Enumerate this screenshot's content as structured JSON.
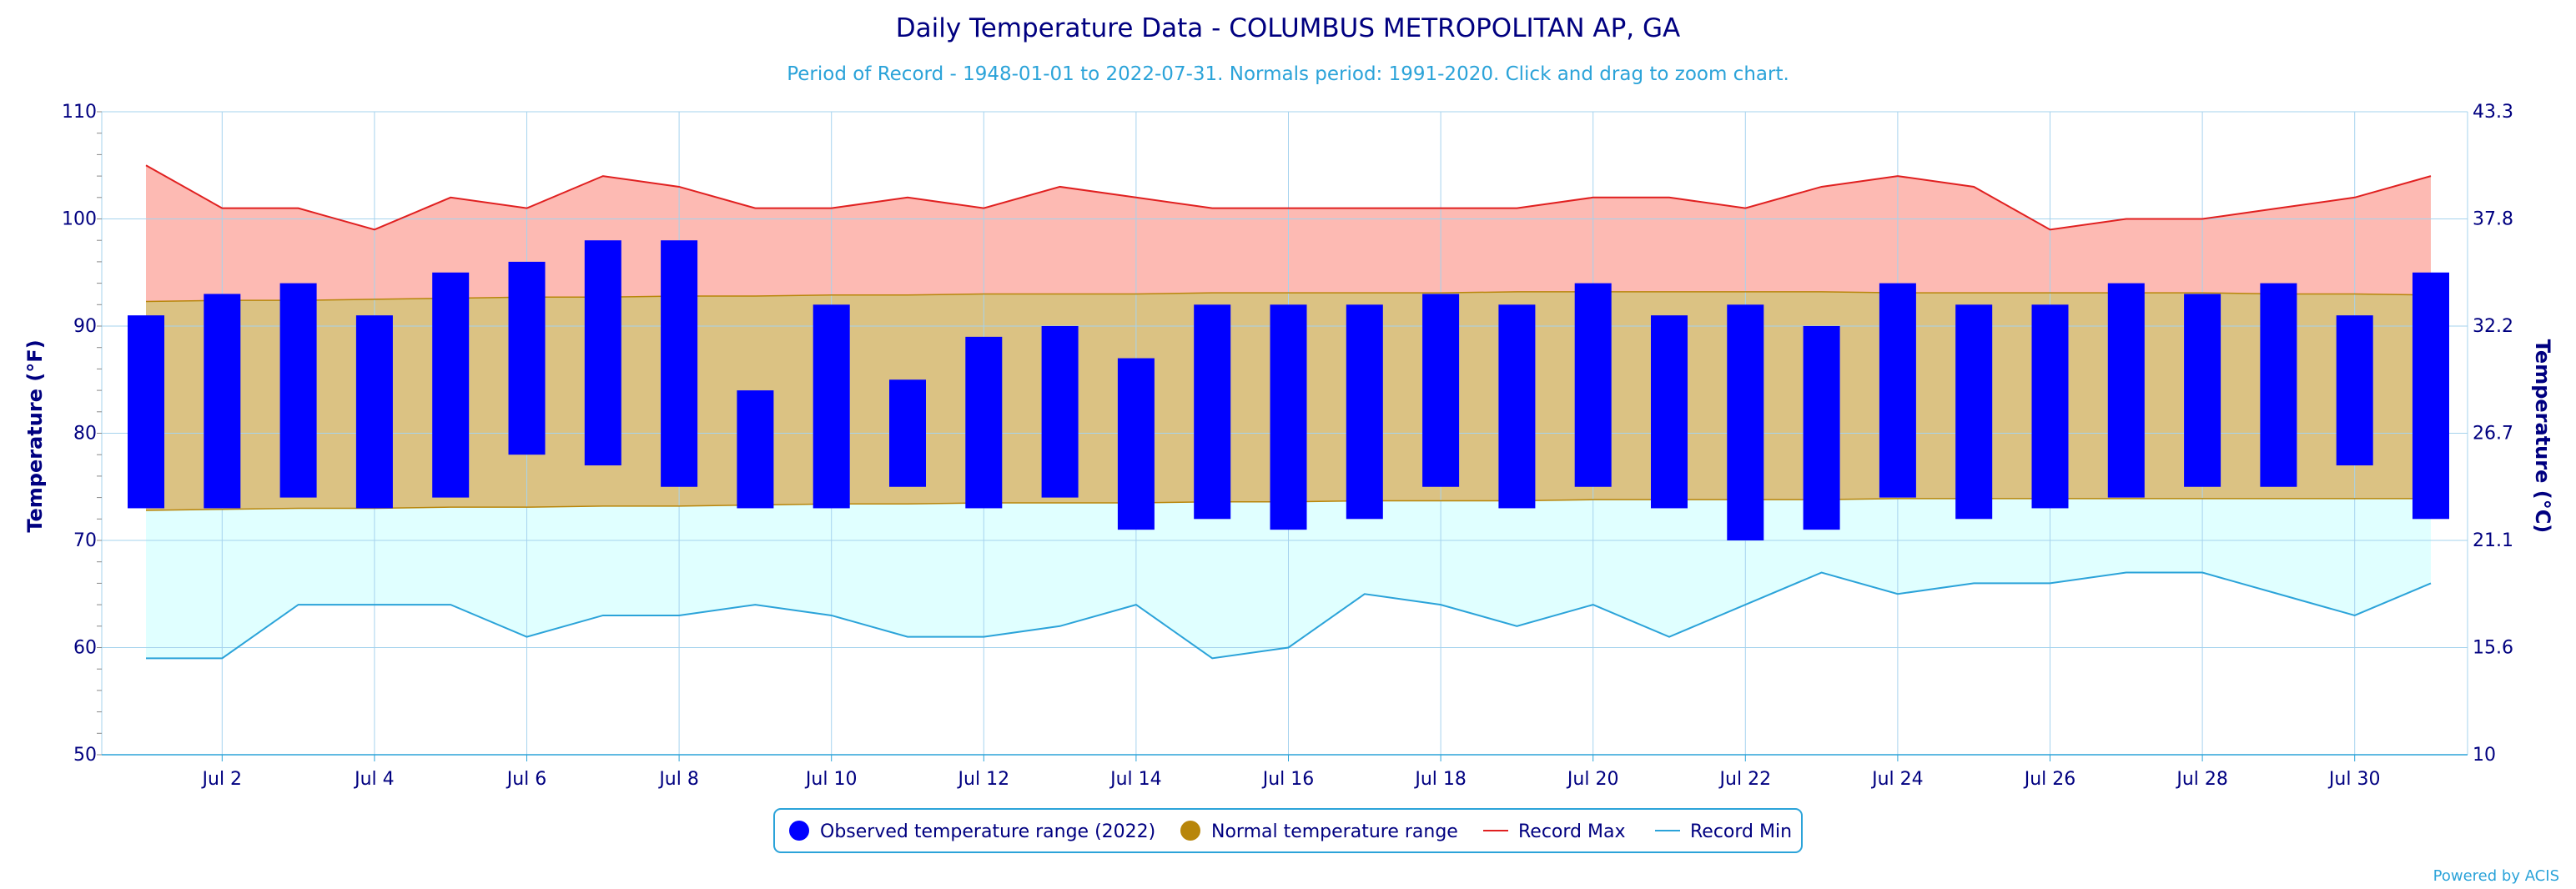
{
  "chart_data": {
    "type": "bar",
    "title": "Daily Temperature Data - COLUMBUS METROPOLITAN AP, GA",
    "subtitle": "Period of Record - 1948-01-01 to 2022-07-31. Normals period: 1991-2020. Click and drag to zoom chart.",
    "ylabel": "Temperature (°F)",
    "ylabel_right": "Temperature (°C)",
    "ylim": [
      50,
      110
    ],
    "y_ticks": [
      50,
      60,
      70,
      80,
      90,
      100,
      110
    ],
    "y_ticks_right": [
      "10",
      "15.6",
      "21.1",
      "26.7",
      "32.2",
      "37.8",
      "43.3"
    ],
    "x_ticks": [
      "Jul 2",
      "Jul 4",
      "Jul 6",
      "Jul 8",
      "Jul 10",
      "Jul 12",
      "Jul 14",
      "Jul 16",
      "Jul 18",
      "Jul 20",
      "Jul 22",
      "Jul 24",
      "Jul 26",
      "Jul 28",
      "Jul 30"
    ],
    "days": [
      1,
      2,
      3,
      4,
      5,
      6,
      7,
      8,
      9,
      10,
      11,
      12,
      13,
      14,
      15,
      16,
      17,
      18,
      19,
      20,
      21,
      22,
      23,
      24,
      25,
      26,
      27,
      28,
      29,
      30,
      31
    ],
    "observed_low": [
      73,
      73,
      74,
      73,
      74,
      78,
      77,
      75,
      73,
      73,
      75,
      73,
      74,
      71,
      72,
      71,
      72,
      75,
      73,
      75,
      73,
      70,
      71,
      74,
      72,
      73,
      74,
      75,
      75,
      77,
      72
    ],
    "observed_high": [
      91,
      93,
      94,
      91,
      95,
      96,
      98,
      98,
      84,
      92,
      85,
      89,
      90,
      87,
      92,
      92,
      92,
      93,
      92,
      94,
      91,
      92,
      90,
      94,
      92,
      92,
      94,
      93,
      94,
      91,
      95
    ],
    "normal_high": [
      92.3,
      92.4,
      92.4,
      92.5,
      92.6,
      92.7,
      92.7,
      92.8,
      92.8,
      92.9,
      92.9,
      93.0,
      93.0,
      93.0,
      93.1,
      93.1,
      93.1,
      93.1,
      93.2,
      93.2,
      93.2,
      93.2,
      93.2,
      93.1,
      93.1,
      93.1,
      93.1,
      93.1,
      93.0,
      93.0,
      92.9
    ],
    "normal_low": [
      72.8,
      72.9,
      73.0,
      73.0,
      73.1,
      73.1,
      73.2,
      73.2,
      73.3,
      73.4,
      73.4,
      73.5,
      73.5,
      73.5,
      73.6,
      73.6,
      73.7,
      73.7,
      73.7,
      73.8,
      73.8,
      73.8,
      73.8,
      73.9,
      73.9,
      73.9,
      73.9,
      73.9,
      73.9,
      73.9,
      73.9
    ],
    "record_max": [
      105,
      101,
      101,
      99,
      102,
      101,
      104,
      103,
      101,
      101,
      102,
      101,
      103,
      102,
      101,
      101,
      101,
      101,
      101,
      102,
      102,
      101,
      103,
      104,
      103,
      99,
      100,
      100,
      101,
      102,
      104
    ],
    "record_min": [
      59,
      59,
      64,
      64,
      64,
      61,
      63,
      63,
      64,
      63,
      61,
      61,
      62,
      64,
      59,
      60,
      65,
      64,
      62,
      64,
      61,
      64,
      67,
      65,
      66,
      66,
      67,
      67,
      65,
      63,
      66
    ],
    "legend": [
      {
        "label": "Observed temperature range (2022)",
        "color": "#0000ff",
        "marker": "circle"
      },
      {
        "label": "Normal temperature range",
        "color": "#b8860b",
        "marker": "circle"
      },
      {
        "label": "Record Max",
        "color": "#e02020",
        "marker": "line"
      },
      {
        "label": "Record Min",
        "color": "#2ba3d9",
        "marker": "line"
      }
    ],
    "legend_position": "bottom-center",
    "grid": true,
    "credit": "Powered by ACIS",
    "colors": {
      "observed": "#0000ff",
      "normal_fill": "#dbc283",
      "normal_line": "#b8860b",
      "record_max_fill": "#fdbab3",
      "record_max_line": "#e02020",
      "record_min_fill": "#e0ffff",
      "record_min_line": "#2ba3d9",
      "grid": "#a6d3ee",
      "axis_text": "#000080"
    }
  }
}
